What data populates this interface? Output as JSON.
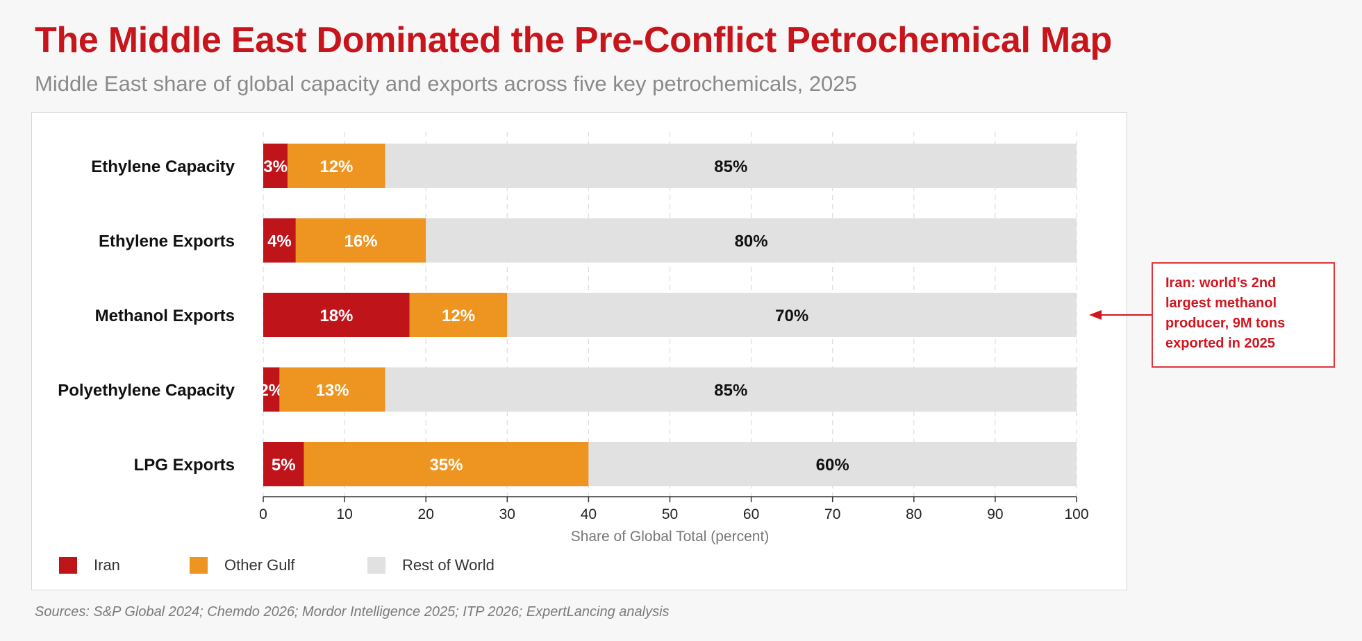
{
  "title": "The Middle East Dominated the Pre-Conflict Petrochemical Map",
  "subtitle": "Middle East share of global capacity and exports across five key petrochemicals, 2025",
  "sources": "Sources: S&P Global 2024; Chemdo 2026; Mordor Intelligence 2025; ITP 2026; ExpertLancing analysis",
  "annotation": {
    "lines": [
      "Iran: world’s 2nd",
      "largest methanol",
      "producer, 9M tons",
      "exported in 2025"
    ],
    "target_category": "Methanol Exports"
  },
  "legend": [
    {
      "name": "Iran",
      "color": "#c0141b"
    },
    {
      "name": "Other Gulf",
      "color": "#ee9420"
    },
    {
      "name": "Rest of World",
      "color": "#e1e1e1"
    }
  ],
  "chart_data": {
    "type": "bar",
    "orientation": "horizontal",
    "stacked": true,
    "categories": [
      "Ethylene Capacity",
      "Ethylene Exports",
      "Methanol Exports",
      "Polyethylene Capacity",
      "LPG Exports"
    ],
    "series": [
      {
        "name": "Iran",
        "color": "#c0141b",
        "values": [
          3,
          4,
          18,
          2,
          5
        ],
        "labels": [
          "3%",
          "4%",
          "18%",
          "2%",
          "5%"
        ],
        "label_color": "#ffffff"
      },
      {
        "name": "Other Gulf",
        "color": "#ee9420",
        "values": [
          12,
          16,
          12,
          13,
          35
        ],
        "labels": [
          "12%",
          "16%",
          "12%",
          "13%",
          "35%"
        ],
        "label_color": "#ffffff"
      },
      {
        "name": "Rest of World",
        "color": "#e1e1e1",
        "values": [
          85,
          80,
          70,
          85,
          60
        ],
        "labels": [
          "85%",
          "80%",
          "70%",
          "85%",
          "60%"
        ],
        "label_color": "#111111"
      }
    ],
    "xlabel": "Share of Global Total (percent)",
    "xlim": [
      0,
      100
    ],
    "xticks": [
      0,
      10,
      20,
      30,
      40,
      50,
      60,
      70,
      80,
      90,
      100
    ],
    "grid": true,
    "legend_position": "bottom-left"
  }
}
